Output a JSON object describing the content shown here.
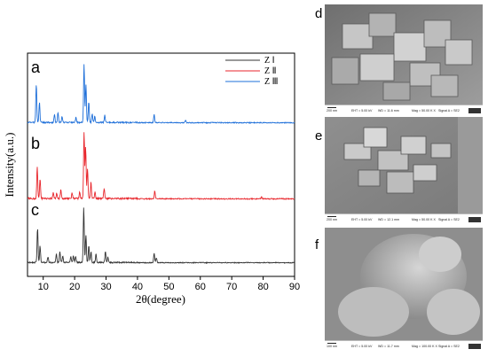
{
  "chart_data": {
    "type": "line",
    "xlabel": "2θ(degree)",
    "ylabel": "Intensity(a.u.)",
    "xlim": [
      5,
      90
    ],
    "x_ticks": [
      "10",
      "20",
      "30",
      "40",
      "50",
      "60",
      "70",
      "80",
      "90"
    ],
    "x_tick_values": [
      10,
      20,
      30,
      40,
      50,
      60,
      70,
      80,
      90
    ],
    "legend_position": "top-right",
    "series": [
      {
        "name": "Z Ⅰ",
        "panel_label": "c",
        "color": "#333333",
        "peaks": [
          [
            8.2,
            0.62
          ],
          [
            9.0,
            0.3
          ],
          [
            11.5,
            0.1
          ],
          [
            14.2,
            0.15
          ],
          [
            15.3,
            0.2
          ],
          [
            16.2,
            0.12
          ],
          [
            18.8,
            0.1
          ],
          [
            19.6,
            0.12
          ],
          [
            20.3,
            0.11
          ],
          [
            22.9,
            1.0
          ],
          [
            23.6,
            0.5
          ],
          [
            24.5,
            0.3
          ],
          [
            25.2,
            0.2
          ],
          [
            26.8,
            0.15
          ],
          [
            29.8,
            0.2
          ],
          [
            30.6,
            0.1
          ],
          [
            45.3,
            0.17
          ],
          [
            46.0,
            0.09
          ]
        ]
      },
      {
        "name": "Z Ⅱ",
        "panel_label": "b",
        "color": "#e8262c",
        "peaks": [
          [
            8.1,
            0.48
          ],
          [
            9.0,
            0.3
          ],
          [
            13.2,
            0.1
          ],
          [
            14.3,
            0.08
          ],
          [
            15.6,
            0.13
          ],
          [
            19.2,
            0.08
          ],
          [
            21.6,
            0.09
          ],
          [
            23.0,
            1.0
          ],
          [
            23.5,
            0.78
          ],
          [
            24.1,
            0.45
          ],
          [
            25.2,
            0.25
          ],
          [
            26.5,
            0.1
          ],
          [
            29.4,
            0.15
          ],
          [
            45.5,
            0.12
          ],
          [
            79.5,
            0.03
          ]
        ]
      },
      {
        "name": "Z Ⅲ",
        "panel_label": "a",
        "color": "#1e6fd9",
        "peaks": [
          [
            7.8,
            0.66
          ],
          [
            8.8,
            0.35
          ],
          [
            13.6,
            0.13
          ],
          [
            14.7,
            0.17
          ],
          [
            16.0,
            0.1
          ],
          [
            20.4,
            0.08
          ],
          [
            23.0,
            1.0
          ],
          [
            23.6,
            0.65
          ],
          [
            24.5,
            0.35
          ],
          [
            25.6,
            0.15
          ],
          [
            26.4,
            0.1
          ],
          [
            29.6,
            0.12
          ],
          [
            45.3,
            0.14
          ],
          [
            55.3,
            0.04
          ]
        ]
      }
    ]
  },
  "sem_panels": [
    {
      "label": "d",
      "scale": "200 nm",
      "eht": "EHT = 5.00 kV",
      "wd": "WD = 11.6 mm",
      "mag": "Mag = 50.00 K X",
      "signal": "Signal A = SE2"
    },
    {
      "label": "e",
      "scale": "200 nm",
      "eht": "EHT = 5.00 kV",
      "wd": "WD = 12.1 mm",
      "mag": "Mag = 50.00 K X",
      "signal": "Signal A = SE2"
    },
    {
      "label": "f",
      "scale": "100 nm",
      "eht": "EHT = 5.00 kV",
      "wd": "WD = 11.7 mm",
      "mag": "Mag = 100.00 K X",
      "signal": "Signal A = SE2"
    }
  ]
}
